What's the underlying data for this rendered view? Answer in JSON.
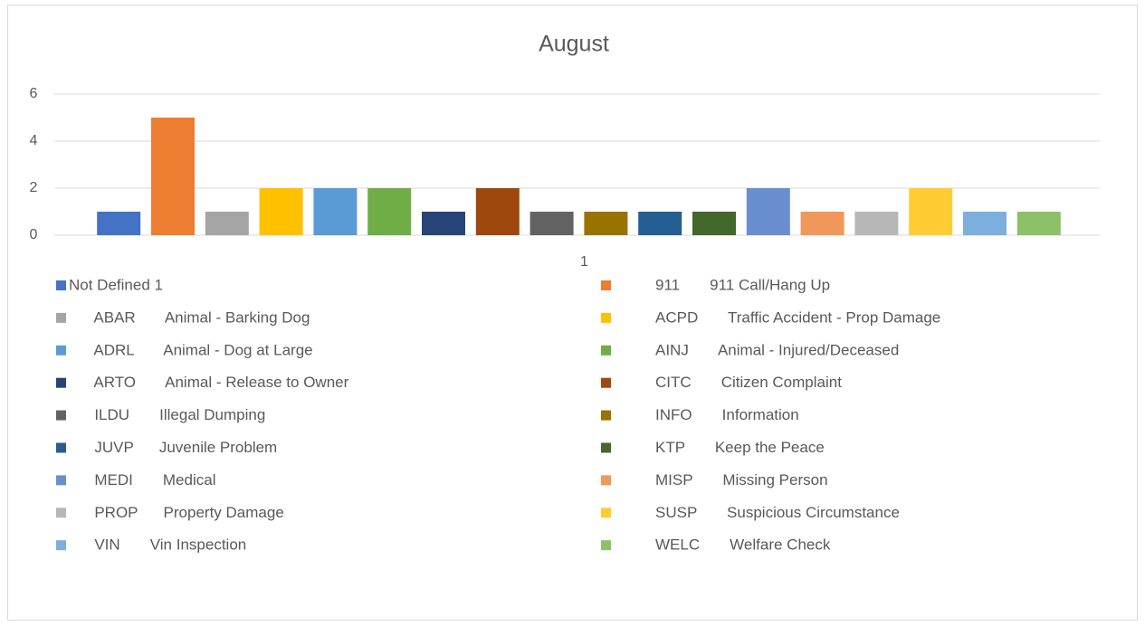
{
  "chart_data": {
    "type": "bar",
    "title": "August",
    "categories": [
      "1"
    ],
    "ylim": [
      0,
      6
    ],
    "yticks": [
      0,
      2,
      4,
      6
    ],
    "grid": true,
    "legend": "bottom",
    "series": [
      {
        "name": "Not Defined 1",
        "color": "#4472c4",
        "values": [
          1
        ]
      },
      {
        "name": "911       911 Call/Hang Up",
        "color": "#ed7d31",
        "values": [
          5
        ]
      },
      {
        "name": "      ABAR       Animal - Barking Dog",
        "color": "#a5a5a5",
        "values": [
          1
        ]
      },
      {
        "name": "ACPD       Traffic Accident - Prop Damage",
        "color": "#ffc000",
        "values": [
          2
        ]
      },
      {
        "name": "      ADRL       Animal - Dog at Large",
        "color": "#5b9bd5",
        "values": [
          2
        ]
      },
      {
        "name": "AINJ       Animal - Injured/Deceased",
        "color": "#70ad47",
        "values": [
          2
        ]
      },
      {
        "name": "      ARTO       Animal - Release to Owner",
        "color": "#264478",
        "values": [
          1
        ]
      },
      {
        "name": "CITC       Citizen Complaint",
        "color": "#9e480e",
        "values": [
          2
        ]
      },
      {
        "name": "      ILDU       Illegal Dumping",
        "color": "#636363",
        "values": [
          1
        ]
      },
      {
        "name": "INFO       Information",
        "color": "#997300",
        "values": [
          1
        ]
      },
      {
        "name": "      JUVP      Juvenile Problem",
        "color": "#255e91",
        "values": [
          1
        ]
      },
      {
        "name": "KTP       Keep the Peace",
        "color": "#43682b",
        "values": [
          1
        ]
      },
      {
        "name": "      MEDI       Medical",
        "color": "#698ed0",
        "values": [
          2
        ]
      },
      {
        "name": "MISP       Missing Person",
        "color": "#f1975a",
        "values": [
          1
        ]
      },
      {
        "name": "      PROP      Property Damage",
        "color": "#b7b7b7",
        "values": [
          1
        ]
      },
      {
        "name": "SUSP       Suspicious Circumstance",
        "color": "#ffcd33",
        "values": [
          2
        ]
      },
      {
        "name": "      VIN       Vin Inspection",
        "color": "#7cafdd",
        "values": [
          1
        ]
      },
      {
        "name": "WELC       Welfare Check",
        "color": "#8cc168",
        "values": [
          1
        ]
      }
    ]
  }
}
